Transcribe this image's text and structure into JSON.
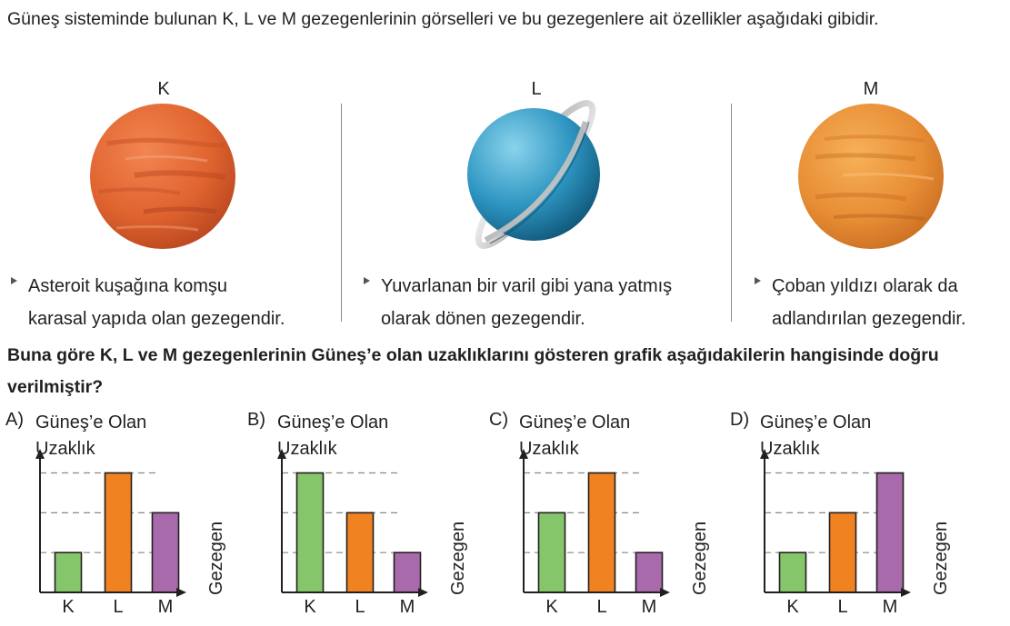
{
  "intro_text": "Güneş sisteminde bulunan K, L ve M gezegenlerinin görselleri ve bu gezegenlere ait özellikler aşağıdaki gibidir.",
  "planets": [
    {
      "label": "K",
      "desc_line1": "Asteroit kuşağına komşu",
      "desc_line2": "karasal yapıda olan gezegendir.",
      "image": "reddish planet (Mars)"
    },
    {
      "label": "L",
      "desc_line1": "Yuvarlanan bir varil gibi yana yatmış",
      "desc_line2": "olarak dönen gezegendir.",
      "image": "blue ringed planet (Uranus)"
    },
    {
      "label": "M",
      "desc_line1": "Çoban yıldızı olarak da",
      "desc_line2": "adlandırılan gezegendir.",
      "image": "orange planet (Venus)"
    }
  ],
  "question": "Buna göre K, L ve M gezegenlerinin Güneş’e olan uzaklıklarını gösteren grafik aşağıdakilerin hangisinde doğru verilmiştir?",
  "colors": {
    "K": "#86c66a",
    "L": "#f08222",
    "M": "#a96aab",
    "axis": "#231f20",
    "grid": "#888888"
  },
  "chart_data": [
    {
      "type": "bar",
      "option": "A)",
      "ylabel_line1": "Güneş’e Olan",
      "ylabel_line2": "Uzaklık",
      "xlabel": "Gezegen",
      "categories": [
        "K",
        "L",
        "M"
      ],
      "values": [
        1,
        3,
        2
      ],
      "ylim": [
        0,
        3.4
      ],
      "grid": true
    },
    {
      "type": "bar",
      "option": "B)",
      "ylabel_line1": "Güneş’e Olan",
      "ylabel_line2": "Uzaklık",
      "xlabel": "Gezegen",
      "categories": [
        "K",
        "L",
        "M"
      ],
      "values": [
        3,
        2,
        1
      ],
      "ylim": [
        0,
        3.4
      ],
      "grid": true
    },
    {
      "type": "bar",
      "option": "C)",
      "ylabel_line1": "Güneş’e Olan",
      "ylabel_line2": "Uzaklık",
      "xlabel": "Gezegen",
      "categories": [
        "K",
        "L",
        "M"
      ],
      "values": [
        2,
        3,
        1
      ],
      "ylim": [
        0,
        3.4
      ],
      "grid": true
    },
    {
      "type": "bar",
      "option": "D)",
      "ylabel_line1": "Güneş’e Olan",
      "ylabel_line2": "Uzaklık",
      "xlabel": "Gezegen",
      "categories": [
        "K",
        "L",
        "M"
      ],
      "values": [
        1,
        2,
        3
      ],
      "ylim": [
        0,
        3.4
      ],
      "grid": true
    }
  ]
}
